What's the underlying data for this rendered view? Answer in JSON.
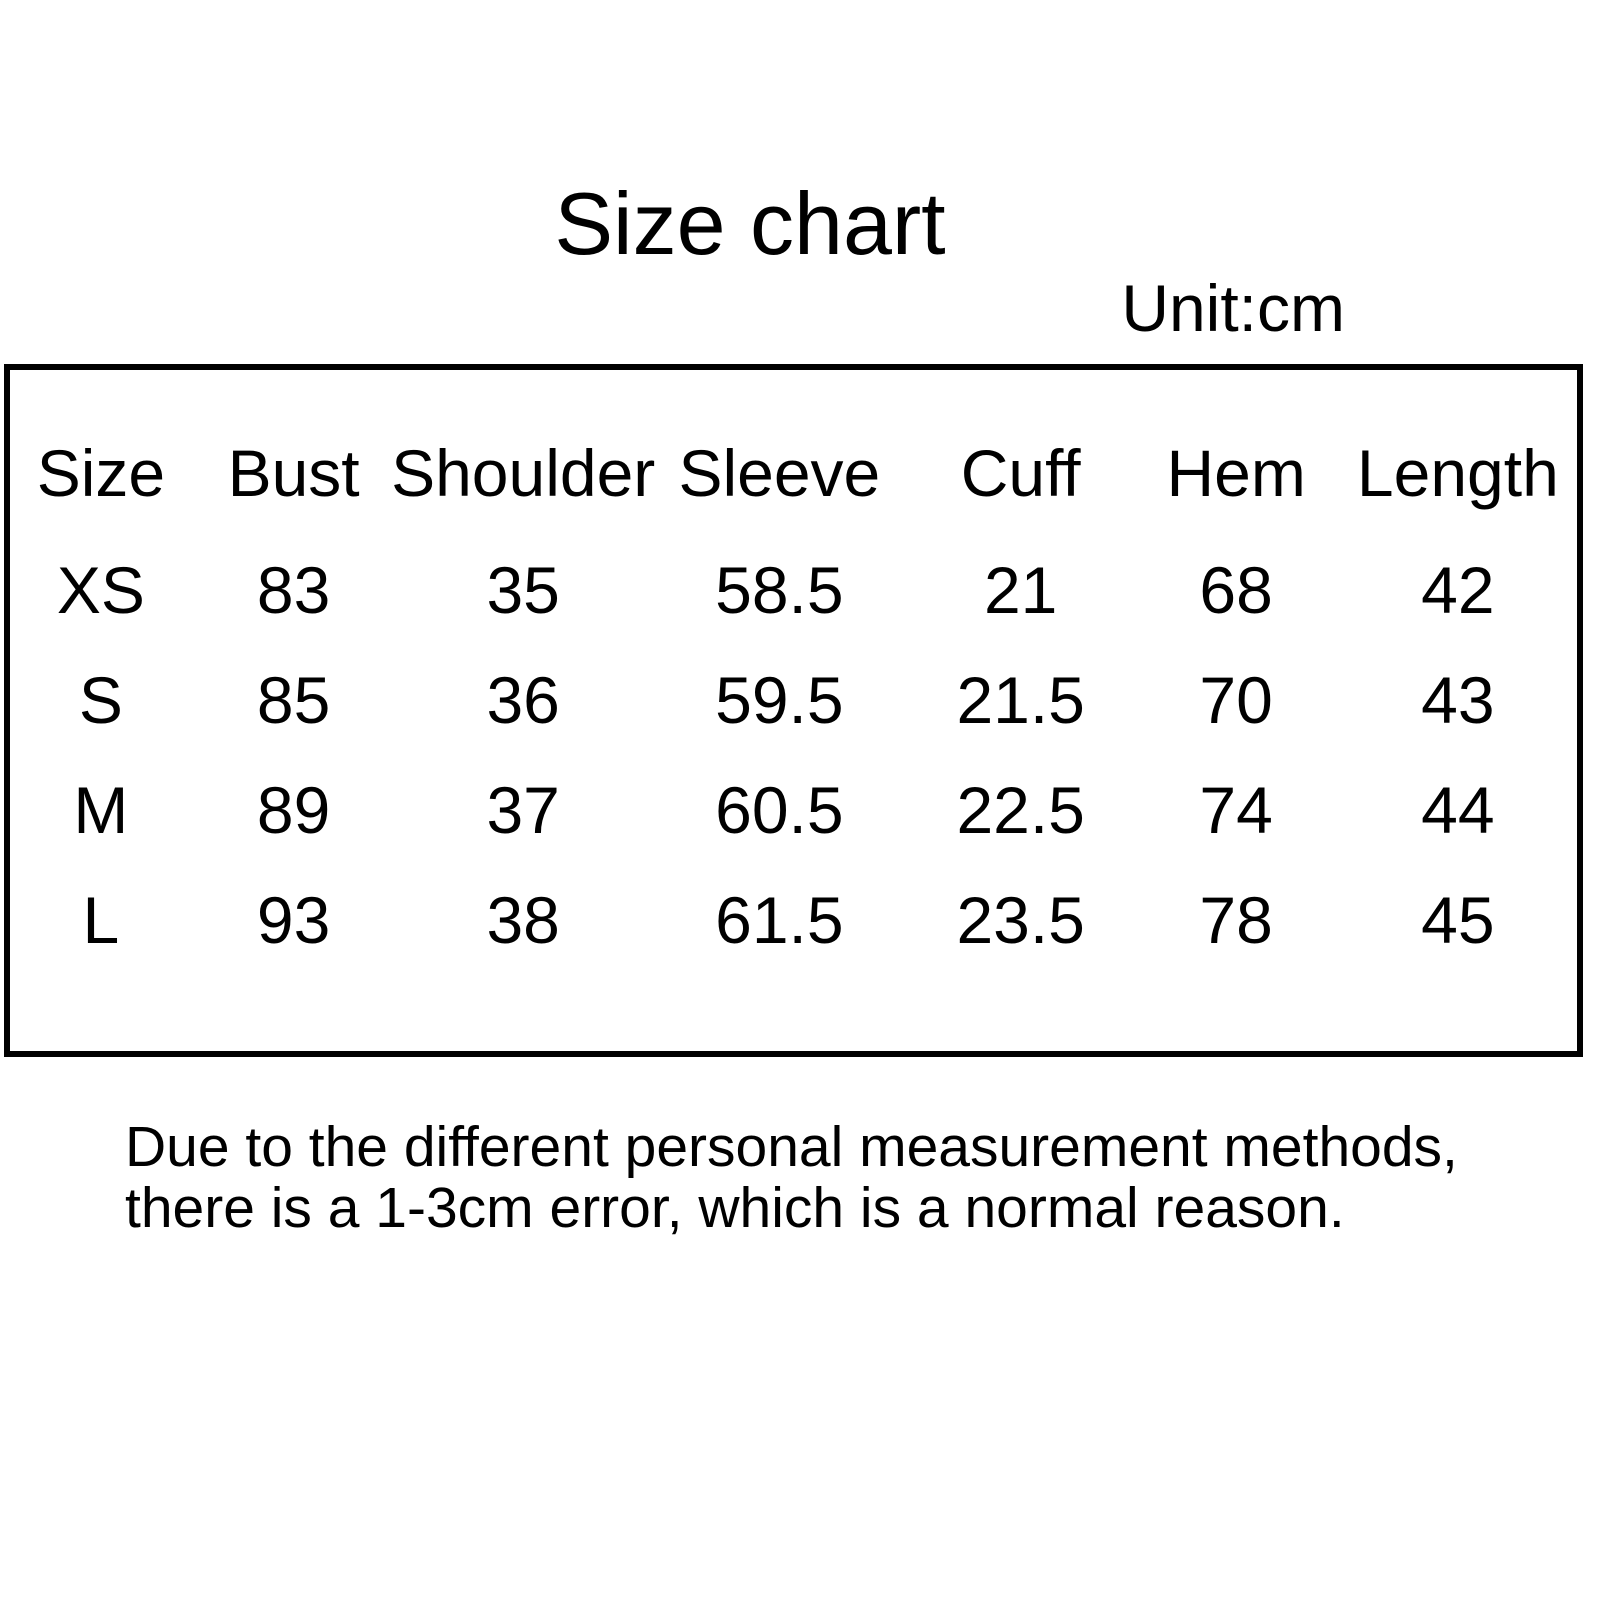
{
  "chart_data": {
    "type": "table",
    "title": "Size chart",
    "unit_label": "Unit:cm",
    "columns": [
      "Size",
      "Bust",
      "Shoulder",
      "Sleeve",
      "Cuff",
      "Hem",
      "Length"
    ],
    "rows": [
      [
        "XS",
        "83",
        "35",
        "58.5",
        "21",
        "68",
        "42"
      ],
      [
        "S",
        "85",
        "36",
        "59.5",
        "21.5",
        "70",
        "43"
      ],
      [
        "M",
        "89",
        "37",
        "60.5",
        "22.5",
        "74",
        "44"
      ],
      [
        "L",
        "93",
        "38",
        "61.5",
        "23.5",
        "78",
        "45"
      ]
    ],
    "note_lines": [
      "Due to the different personal measurement methods,",
      "there is a 1-3cm error, which is a normal reason."
    ]
  },
  "colors": {
    "text": "#000000",
    "background": "#ffffff",
    "border": "#000000"
  }
}
